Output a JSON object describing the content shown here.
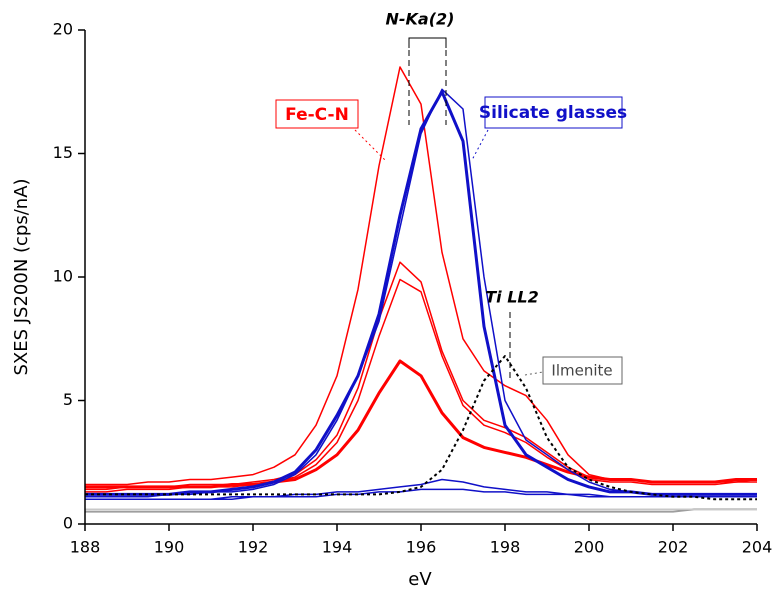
{
  "chart_data": {
    "type": "line",
    "x_label": "eV",
    "y_label": "SXES JS200N (cps/nA)",
    "xlim": [
      188,
      204
    ],
    "xticks": [
      188,
      190,
      192,
      194,
      196,
      198,
      200,
      202,
      204
    ],
    "ylim": [
      0,
      20
    ],
    "yticks": [
      0,
      5,
      10,
      15,
      20
    ],
    "x": [
      188,
      188.5,
      189,
      189.5,
      190,
      190.5,
      191,
      191.5,
      192,
      192.5,
      193,
      193.5,
      194,
      194.5,
      195,
      195.5,
      196,
      196.5,
      197,
      197.5,
      198,
      198.5,
      199,
      199.5,
      200,
      200.5,
      201,
      201.5,
      202,
      202.5,
      203,
      203.5,
      204
    ],
    "series": [
      {
        "color": "#9e9e9e",
        "line_width": 2,
        "dashed": false,
        "values": [
          0.5,
          0.5,
          0.5,
          0.5,
          0.5,
          0.5,
          0.5,
          0.5,
          0.5,
          0.5,
          0.5,
          0.5,
          0.5,
          0.5,
          0.5,
          0.5,
          0.5,
          0.5,
          0.5,
          0.5,
          0.5,
          0.5,
          0.5,
          0.5,
          0.5,
          0.5,
          0.5,
          0.5,
          0.5,
          0.6,
          0.6,
          0.6,
          0.6
        ]
      },
      {
        "color": "#c8c8c8",
        "line_width": 1.5,
        "dashed": false,
        "values": [
          0.6,
          0.6,
          0.6,
          0.6,
          0.6,
          0.6,
          0.6,
          0.6,
          0.6,
          0.6,
          0.6,
          0.6,
          0.6,
          0.6,
          0.6,
          0.6,
          0.6,
          0.6,
          0.6,
          0.6,
          0.6,
          0.6,
          0.6,
          0.6,
          0.6,
          0.6,
          0.6,
          0.6,
          0.6,
          0.6,
          0.6,
          0.6,
          0.6
        ]
      },
      {
        "color": "#ff0000",
        "line_width": 1.5,
        "dashed": false,
        "values": [
          1.6,
          1.6,
          1.6,
          1.7,
          1.7,
          1.8,
          1.8,
          1.9,
          2.0,
          2.3,
          2.8,
          4.0,
          6.0,
          9.5,
          14.5,
          18.5,
          17.0,
          11.0,
          7.5,
          6.2,
          5.6,
          5.2,
          4.2,
          2.8,
          2.0,
          1.8,
          1.8,
          1.7,
          1.7,
          1.7,
          1.7,
          1.8,
          1.8
        ]
      },
      {
        "color": "#ff0000",
        "line_width": 1.5,
        "dashed": false,
        "values": [
          1.4,
          1.4,
          1.5,
          1.5,
          1.5,
          1.6,
          1.6,
          1.6,
          1.7,
          1.8,
          2.0,
          2.6,
          3.6,
          5.5,
          8.3,
          10.6,
          9.8,
          7.0,
          5.0,
          4.2,
          3.9,
          3.5,
          2.9,
          2.3,
          1.9,
          1.8,
          1.8,
          1.7,
          1.7,
          1.7,
          1.7,
          1.7,
          1.8
        ]
      },
      {
        "color": "#ff0000",
        "line_width": 1.5,
        "dashed": false,
        "values": [
          1.3,
          1.3,
          1.4,
          1.4,
          1.4,
          1.5,
          1.5,
          1.5,
          1.6,
          1.7,
          1.9,
          2.4,
          3.3,
          5.0,
          7.6,
          9.9,
          9.4,
          6.8,
          4.8,
          4.0,
          3.7,
          3.3,
          2.7,
          2.2,
          1.8,
          1.7,
          1.7,
          1.6,
          1.6,
          1.6,
          1.6,
          1.7,
          1.7
        ]
      },
      {
        "color": "#ff0000",
        "line_width": 3,
        "dashed": false,
        "values": [
          1.5,
          1.5,
          1.5,
          1.5,
          1.5,
          1.5,
          1.5,
          1.6,
          1.6,
          1.7,
          1.8,
          2.2,
          2.8,
          3.8,
          5.3,
          6.6,
          6.0,
          4.5,
          3.5,
          3.1,
          2.9,
          2.7,
          2.4,
          2.1,
          1.9,
          1.8,
          1.8,
          1.7,
          1.7,
          1.7,
          1.7,
          1.8,
          1.8
        ]
      },
      {
        "color": "#1010c8",
        "line_width": 1.5,
        "dashed": false,
        "values": [
          1.0,
          1.0,
          1.0,
          1.0,
          1.0,
          1.0,
          1.0,
          1.1,
          1.1,
          1.1,
          1.2,
          1.2,
          1.3,
          1.3,
          1.4,
          1.5,
          1.6,
          1.8,
          1.7,
          1.5,
          1.4,
          1.3,
          1.3,
          1.2,
          1.2,
          1.1,
          1.1,
          1.1,
          1.1,
          1.1,
          1.1,
          1.1,
          1.1
        ]
      },
      {
        "color": "#1010c8",
        "line_width": 1.5,
        "dashed": false,
        "values": [
          1.0,
          1.0,
          1.0,
          1.0,
          1.0,
          1.0,
          1.0,
          1.0,
          1.1,
          1.1,
          1.1,
          1.1,
          1.2,
          1.2,
          1.3,
          1.3,
          1.4,
          1.4,
          1.4,
          1.3,
          1.3,
          1.2,
          1.2,
          1.2,
          1.1,
          1.1,
          1.1,
          1.1,
          1.1,
          1.1,
          1.1,
          1.1,
          1.1
        ]
      },
      {
        "color": "#1010c8",
        "line_width": 1.5,
        "dashed": false,
        "values": [
          1.1,
          1.1,
          1.1,
          1.1,
          1.2,
          1.2,
          1.3,
          1.3,
          1.4,
          1.6,
          2.0,
          2.8,
          4.2,
          6.0,
          8.2,
          12.0,
          15.8,
          17.6,
          16.8,
          10.0,
          5.0,
          3.4,
          2.8,
          2.2,
          1.7,
          1.4,
          1.3,
          1.2,
          1.2,
          1.2,
          1.2,
          1.2,
          1.2
        ]
      },
      {
        "color": "#1010c8",
        "line_width": 3,
        "dashed": false,
        "values": [
          1.2,
          1.2,
          1.2,
          1.2,
          1.2,
          1.3,
          1.3,
          1.4,
          1.5,
          1.7,
          2.1,
          3.0,
          4.4,
          6.0,
          8.5,
          12.5,
          16.0,
          17.5,
          15.5,
          8.0,
          4.0,
          2.8,
          2.3,
          1.8,
          1.5,
          1.3,
          1.3,
          1.2,
          1.2,
          1.2,
          1.2,
          1.2,
          1.2
        ]
      },
      {
        "color": "#000000",
        "line_width": 2,
        "dashed": true,
        "values": [
          1.2,
          1.2,
          1.2,
          1.2,
          1.2,
          1.2,
          1.2,
          1.2,
          1.2,
          1.2,
          1.2,
          1.2,
          1.2,
          1.2,
          1.2,
          1.3,
          1.5,
          2.2,
          3.8,
          5.8,
          6.8,
          5.5,
          3.5,
          2.3,
          1.8,
          1.5,
          1.3,
          1.2,
          1.1,
          1.1,
          1.0,
          1.0,
          1.0
        ]
      }
    ],
    "annotations": [
      {
        "text": "N-Ka(2)"
      },
      {
        "text": "Ti LL2"
      },
      {
        "text": "Fe-C-N"
      },
      {
        "text": "Silicate glasses"
      },
      {
        "text": "Ilmenite"
      }
    ]
  }
}
